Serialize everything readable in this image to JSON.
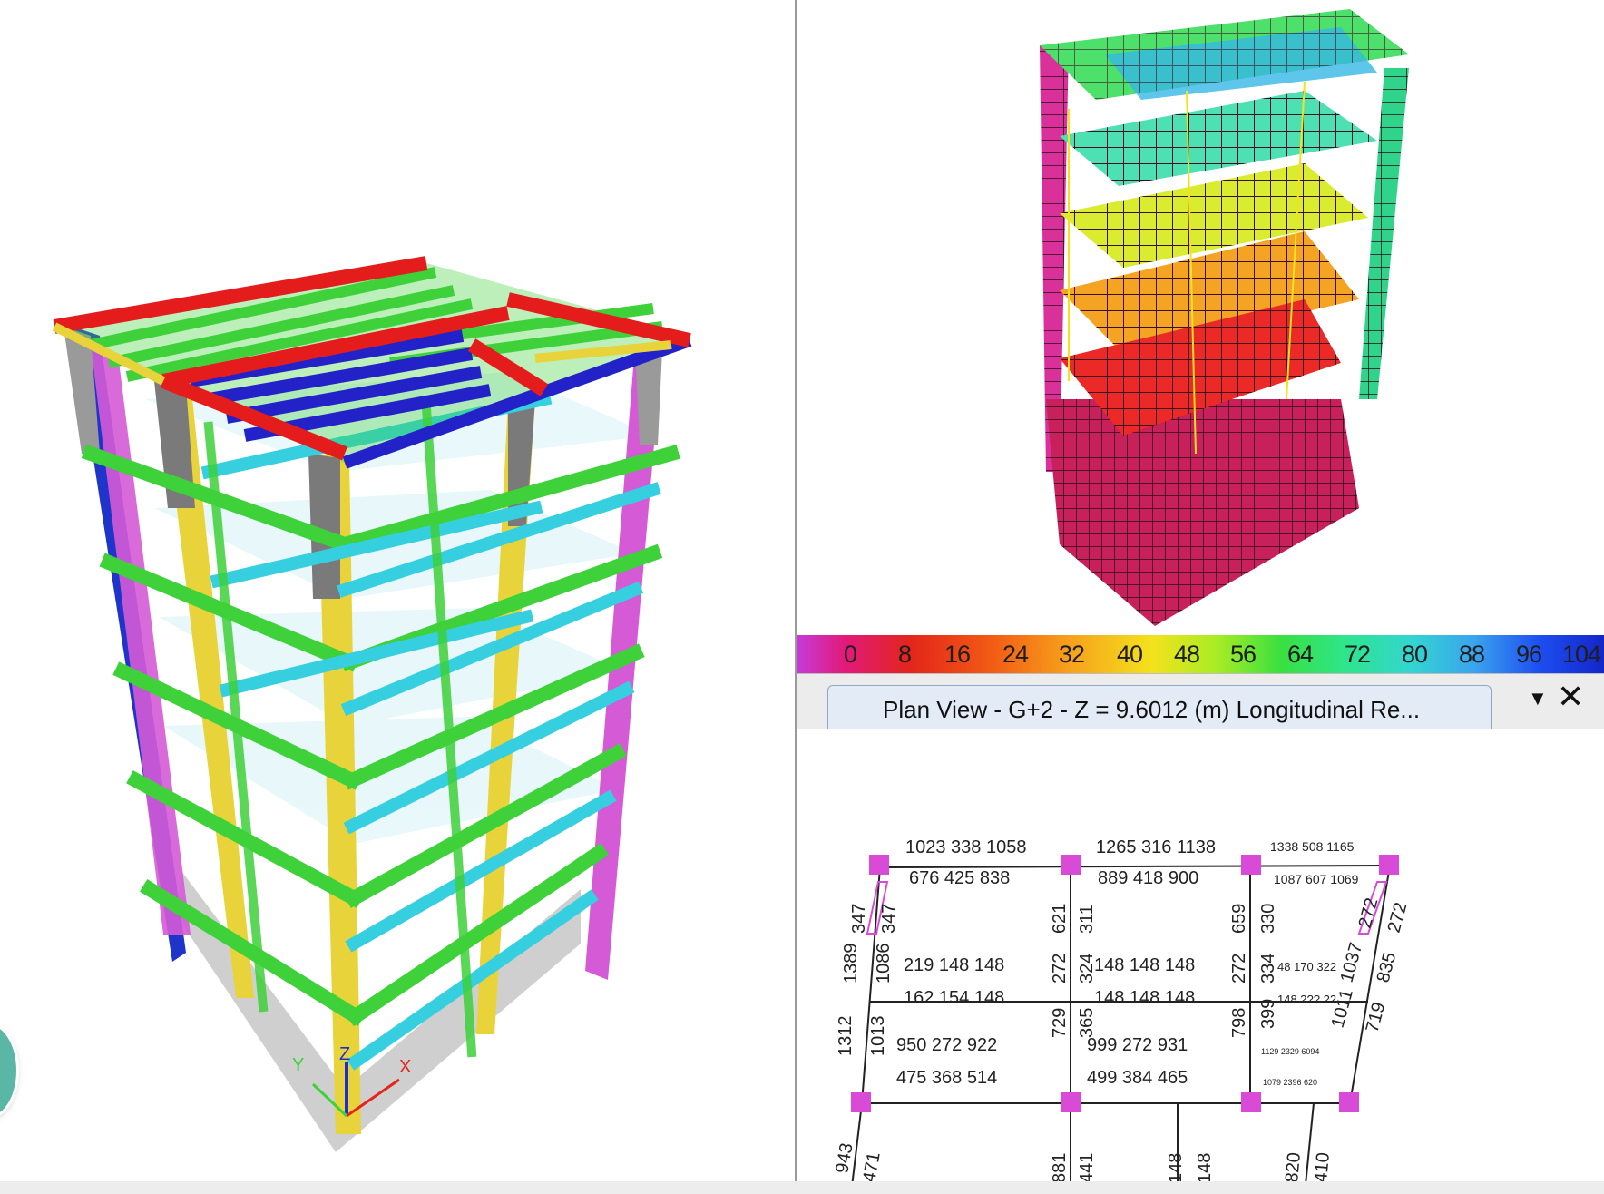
{
  "legend": {
    "ticks": [
      "0",
      "8",
      "16",
      "24",
      "32",
      "40",
      "48",
      "56",
      "64",
      "72",
      "80",
      "88",
      "96",
      "104"
    ],
    "colors": {
      "start": "#c43cd8",
      "end": "#1426c9"
    }
  },
  "plan_tab": {
    "title": "Plan View - G+2 - Z = 9.6012 (m)  Longitudinal Re...",
    "menu_icon": "chevron-down-icon",
    "close_icon": "close-icon"
  },
  "plan_values": {
    "bay1_top_row1": "1023  338  1058",
    "bay1_top_row2": "676  425  838",
    "bay2_top_row1": "1265  316  1138",
    "bay2_top_row2": "889  418  900",
    "bay3_top_row1": "1338  508  1165",
    "bay3_top_row2": "1087  607  1069",
    "bay1_mid_row1": "219   148   148",
    "bay1_mid_row2": "162   154   148",
    "bay2_mid_row1": "148   148   148",
    "bay2_mid_row2": "148   148   148",
    "bay3_mid_row1": "48  170  322",
    "bay3_mid_row2": "148  2?? 22",
    "bay1_bot_row1": "950  272  922",
    "bay1_bot_row2": "475  368  514",
    "bay2_bot_row1": "999  272  931",
    "bay2_bot_row2": "499  384  465",
    "bay3_bot_row1": "1129 2329 6094",
    "bay3_bot_row2": "1079 2396 620",
    "v_a1": "347",
    "v_a2": "347",
    "v_a3": "1389",
    "v_a4": "1086",
    "v_a5": "1312",
    "v_a6": "1013",
    "v_b1": "621",
    "v_b2": "272",
    "v_b3": "729",
    "v_c1": "311",
    "v_c2": "324",
    "v_c3": "365",
    "v_d1": "659",
    "v_d2": "272",
    "v_d3": "798",
    "v_e1": "330",
    "v_e2": "334",
    "v_e3": "399",
    "v_f1": "272",
    "v_f2": "272",
    "v_f3": "1037",
    "v_f4": "835",
    "v_f5": "1011",
    "v_f6": "719",
    "b_1": "943",
    "b_2": "471",
    "b_3": "881",
    "b_4": "441",
    "b_5": "148",
    "b_6": "148",
    "b_7": "820",
    "b_8": "410"
  }
}
